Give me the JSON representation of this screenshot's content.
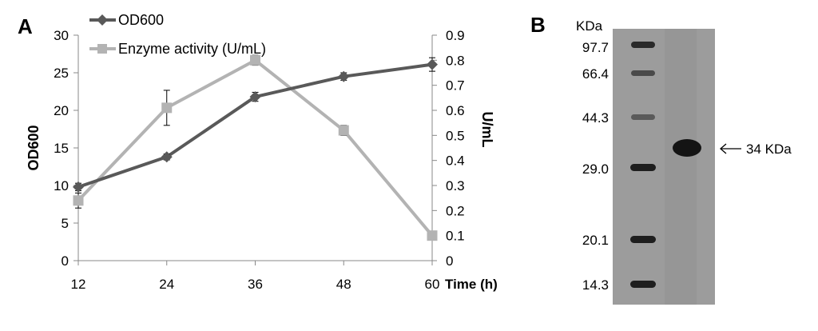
{
  "panel_a": {
    "label": "A"
  },
  "panel_b": {
    "label": "B",
    "unit_header": "KDa",
    "markers": [
      "97.7",
      "66.4",
      "44.3",
      "29.0",
      "20.1",
      "14.3"
    ],
    "band_annotation": "34 KDa"
  },
  "chart_data": {
    "type": "line",
    "x": [
      12,
      24,
      36,
      48,
      60
    ],
    "xlabel": "Time (h)",
    "xticks": [
      "12",
      "24",
      "36",
      "48",
      "60"
    ],
    "ylabel": "OD600",
    "ylim": [
      0,
      30
    ],
    "yticks": [
      "0",
      "5",
      "10",
      "15",
      "20",
      "25",
      "30"
    ],
    "y2label": "U/mL",
    "y2lim": [
      0,
      0.9
    ],
    "y2ticks": [
      "0",
      "0.1",
      "0.2",
      "0.3",
      "0.4",
      "0.5",
      "0.6",
      "0.7",
      "0.8",
      "0.9"
    ],
    "grid": false,
    "legend_position": "top-left",
    "series": [
      {
        "name": "OD600",
        "axis": "left",
        "marker": "diamond",
        "color": "#595959",
        "values": [
          9.8,
          13.8,
          21.8,
          24.5,
          26.1
        ],
        "errors": [
          0.5,
          0.4,
          0.6,
          0.5,
          0.9
        ]
      },
      {
        "name": "Enzyme activity (U/mL)",
        "axis": "right",
        "marker": "square",
        "color": "#b3b3b3",
        "values": [
          0.24,
          0.61,
          0.8,
          0.52,
          0.1
        ],
        "errors": [
          0.03,
          0.07,
          0.02,
          0.02,
          0.0
        ]
      }
    ]
  }
}
